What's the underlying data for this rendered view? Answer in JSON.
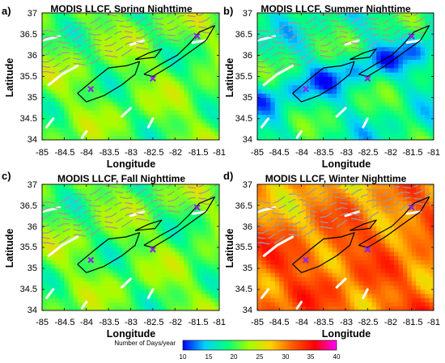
{
  "chart_data": [
    {
      "type": "heatmap",
      "panel_label": "a)",
      "title": "MODIS LLCF, Spring Nighttime",
      "xlabel": "Longitude",
      "ylabel": "Latitude",
      "xlim": [
        -85,
        -81
      ],
      "ylim": [
        34,
        37
      ],
      "xticks": [
        "-85",
        "-84.5",
        "-84",
        "-83.5",
        "-83",
        "-82.5",
        "-82",
        "-81.5",
        "-81"
      ],
      "yticks": [
        "34",
        "34.5",
        "35",
        "35.5",
        "36",
        "36.5",
        "37"
      ],
      "typical_value_days_per_year": 21,
      "markers": [
        {
          "lon": -83.9,
          "lat": 35.2
        },
        {
          "lon": -82.5,
          "lat": 35.45
        },
        {
          "lon": -81.5,
          "lat": 36.45
        }
      ]
    },
    {
      "type": "heatmap",
      "panel_label": "b)",
      "title": "MODIS LLCF, Summer Nighttime",
      "xlabel": "Longitude",
      "ylabel": "Latitude",
      "xlim": [
        -85,
        -81
      ],
      "ylim": [
        34,
        37
      ],
      "xticks": [
        "-85",
        "-84.5",
        "-84",
        "-83.5",
        "-83",
        "-82.5",
        "-82",
        "-81.5",
        "-81"
      ],
      "yticks": [
        "34",
        "34.5",
        "35",
        "35.5",
        "36",
        "36.5",
        "37"
      ],
      "typical_value_days_per_year": 18,
      "markers": [
        {
          "lon": -83.9,
          "lat": 35.2
        },
        {
          "lon": -82.5,
          "lat": 35.45
        },
        {
          "lon": -81.5,
          "lat": 36.45
        }
      ]
    },
    {
      "type": "heatmap",
      "panel_label": "c)",
      "title": "MODIS LLCF, Fall Nighttime",
      "xlabel": "Longitude",
      "ylabel": "Latitude",
      "xlim": [
        -85,
        -81
      ],
      "ylim": [
        34,
        37
      ],
      "xticks": [
        "-85",
        "-84.5",
        "-84",
        "-83.5",
        "-83",
        "-82.5",
        "-82",
        "-81.5",
        "-81"
      ],
      "yticks": [
        "34",
        "34.5",
        "35",
        "35.5",
        "36",
        "36.5",
        "37"
      ],
      "typical_value_days_per_year": 21,
      "markers": [
        {
          "lon": -83.9,
          "lat": 35.2
        },
        {
          "lon": -82.5,
          "lat": 35.45
        },
        {
          "lon": -81.5,
          "lat": 36.45
        }
      ]
    },
    {
      "type": "heatmap",
      "panel_label": "d)",
      "title": "MODIS LLCF, Winter Nighttime",
      "xlabel": "Longitude",
      "ylabel": "Latitude",
      "xlim": [
        -85,
        -81
      ],
      "ylim": [
        34,
        37
      ],
      "xticks": [
        "-85",
        "-84.5",
        "-84",
        "-83.5",
        "-83",
        "-82.5",
        "-82",
        "-81.5",
        "-81"
      ],
      "yticks": [
        "34",
        "34.5",
        "35",
        "35.5",
        "36",
        "36.5",
        "37"
      ],
      "typical_value_days_per_year": 30,
      "markers": [
        {
          "lon": -83.9,
          "lat": 35.2
        },
        {
          "lon": -82.5,
          "lat": 35.45
        },
        {
          "lon": -81.5,
          "lat": 36.45
        }
      ]
    }
  ],
  "colorbar": {
    "label": "Number of Days/year",
    "ticks": [
      "10",
      "15",
      "20",
      "25",
      "30",
      "35",
      "40"
    ],
    "range": [
      10,
      40
    ],
    "colors": [
      "#0000ff",
      "#00d2ff",
      "#00ff80",
      "#a0ff00",
      "#ffd200",
      "#ff5a00",
      "#ff0000",
      "#ff00ff"
    ]
  },
  "colors": {
    "marker": "#8a2be2",
    "contour": "#000000",
    "ridges": "#9a9a9a",
    "water": "#ffffff"
  }
}
